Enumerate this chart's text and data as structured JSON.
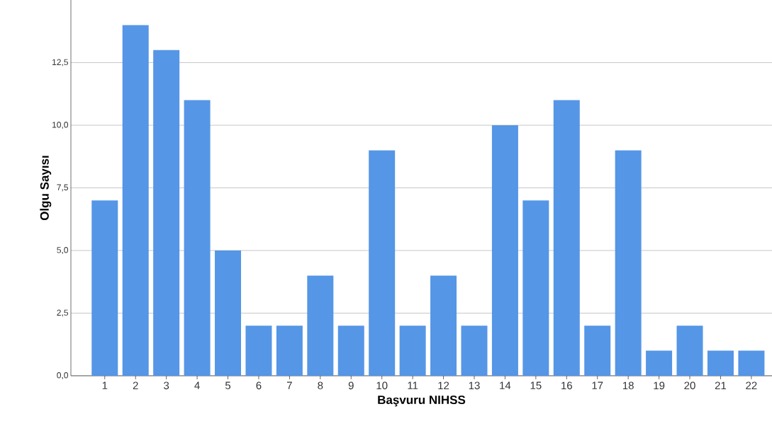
{
  "chart_data": {
    "type": "bar",
    "xlabel": "Başvuru NIHSS",
    "ylabel": "Olgu Sayısı",
    "categories": [
      "1",
      "2",
      "3",
      "4",
      "5",
      "6",
      "7",
      "8",
      "9",
      "10",
      "11",
      "12",
      "13",
      "14",
      "15",
      "16",
      "17",
      "18",
      "19",
      "20",
      "21",
      "22"
    ],
    "values": [
      7,
      14,
      13,
      11,
      5,
      2,
      2,
      4,
      2,
      9,
      2,
      4,
      2,
      10,
      7,
      11,
      2,
      9,
      1,
      2,
      1,
      1
    ],
    "color": "#5596e6",
    "ylim": [
      0,
      15
    ],
    "yticks": [
      {
        "value": 0,
        "label": "0,0"
      },
      {
        "value": 2.5,
        "label": "2,5"
      },
      {
        "value": 5,
        "label": "5,0"
      },
      {
        "value": 7.5,
        "label": "7,5"
      },
      {
        "value": 10,
        "label": "10,0"
      },
      {
        "value": 12.5,
        "label": "12,5"
      }
    ],
    "grid": "y"
  }
}
